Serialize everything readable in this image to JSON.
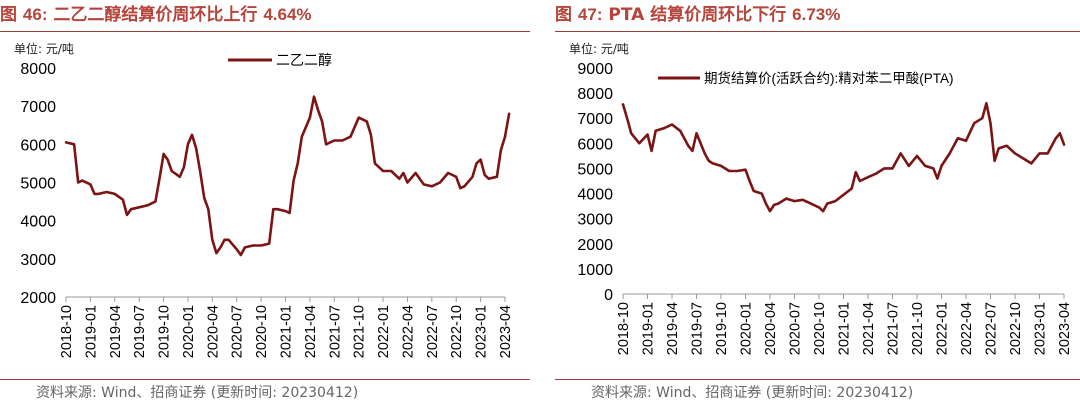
{
  "charts": [
    {
      "title_prefix": "图",
      "title_num": "46:",
      "title_text": "二乙二醇结算价周环比上行",
      "title_value": "4.64%",
      "unit": "单位: 元/吨",
      "legend": "二乙二醇",
      "source": "资料来源: Wind、招商证券 (更新时间: 20230412)"
    },
    {
      "title_prefix": "图",
      "title_num": "47:",
      "title_text": "PTA 结算价周环比下行",
      "title_value": "6.73%",
      "unit": "单位: 元/吨",
      "legend": "期货结算价(活跃合约):精对苯二甲酸(PTA)",
      "source": "资料来源: Wind、招商证券 (更新时间: 20230412)"
    }
  ],
  "colors": {
    "accent": "#b5443b",
    "line": "#7b1414",
    "rule": "#9a3b34"
  },
  "chart_data": [
    {
      "type": "line",
      "xlabel": "",
      "ylabel": "",
      "x_ticks": [
        "2018-10",
        "2019-01",
        "2019-04",
        "2019-07",
        "2019-10",
        "2020-01",
        "2020-04",
        "2020-07",
        "2020-10",
        "2021-01",
        "2021-04",
        "2021-07",
        "2021-10",
        "2022-01",
        "2022-04",
        "2022-07",
        "2022-10",
        "2023-01",
        "2023-04"
      ],
      "xlim": [
        "2018-10",
        "2023-04"
      ],
      "ylim": [
        2000,
        8000
      ],
      "y_ticks": [
        2000,
        3000,
        4000,
        5000,
        6000,
        7000,
        8000
      ],
      "grid": false,
      "legend_position": "top-center",
      "series": [
        {
          "name": "二乙二醇",
          "points": [
            [
              "2018-10",
              6050
            ],
            [
              "2018-11",
              6000
            ],
            [
              "2018-11",
              5000
            ],
            [
              "2018-12",
              5050
            ],
            [
              "2019-01",
              4950
            ],
            [
              "2019-01",
              4700
            ],
            [
              "2019-02",
              4700
            ],
            [
              "2019-03",
              4750
            ],
            [
              "2019-04",
              4700
            ],
            [
              "2019-05",
              4550
            ],
            [
              "2019-05",
              4150
            ],
            [
              "2019-06",
              4300
            ],
            [
              "2019-07",
              4350
            ],
            [
              "2019-08",
              4400
            ],
            [
              "2019-09",
              4500
            ],
            [
              "2019-09",
              5100
            ],
            [
              "2019-10",
              5750
            ],
            [
              "2019-10",
              5600
            ],
            [
              "2019-11",
              5300
            ],
            [
              "2019-12",
              5150
            ],
            [
              "2019-12",
              5400
            ],
            [
              "2020-01",
              6000
            ],
            [
              "2020-01",
              6250
            ],
            [
              "2020-02",
              5900
            ],
            [
              "2020-02",
              5300
            ],
            [
              "2020-03",
              4600
            ],
            [
              "2020-03",
              4300
            ],
            [
              "2020-04",
              3500
            ],
            [
              "2020-04",
              3150
            ],
            [
              "2020-05",
              3300
            ],
            [
              "2020-05",
              3500
            ],
            [
              "2020-06",
              3500
            ],
            [
              "2020-07",
              3250
            ],
            [
              "2020-07",
              3100
            ],
            [
              "2020-08",
              3300
            ],
            [
              "2020-09",
              3350
            ],
            [
              "2020-10",
              3350
            ],
            [
              "2020-11",
              3400
            ],
            [
              "2020-11",
              4300
            ],
            [
              "2020-12",
              4300
            ],
            [
              "2021-01",
              4250
            ],
            [
              "2021-01",
              4200
            ],
            [
              "2021-02",
              5050
            ],
            [
              "2021-02",
              5500
            ],
            [
              "2021-03",
              6200
            ],
            [
              "2021-04",
              6700
            ],
            [
              "2021-04",
              7250
            ],
            [
              "2021-05",
              6900
            ],
            [
              "2021-05",
              6600
            ],
            [
              "2021-06",
              6000
            ],
            [
              "2021-07",
              6100
            ],
            [
              "2021-08",
              6100
            ],
            [
              "2021-09",
              6200
            ],
            [
              "2021-09",
              6450
            ],
            [
              "2021-10",
              6700
            ],
            [
              "2021-11",
              6600
            ],
            [
              "2021-11",
              6250
            ],
            [
              "2021-12",
              5500
            ],
            [
              "2022-01",
              5300
            ],
            [
              "2022-02",
              5300
            ],
            [
              "2022-03",
              5100
            ],
            [
              "2022-03",
              5250
            ],
            [
              "2022-04",
              5000
            ],
            [
              "2022-05",
              5250
            ],
            [
              "2022-06",
              4950
            ],
            [
              "2022-07",
              4900
            ],
            [
              "2022-08",
              5000
            ],
            [
              "2022-09",
              5250
            ],
            [
              "2022-10",
              5150
            ],
            [
              "2022-10",
              4850
            ],
            [
              "2022-11",
              4900
            ],
            [
              "2022-12",
              5150
            ],
            [
              "2022-12",
              5500
            ],
            [
              "2023-01",
              5600
            ],
            [
              "2023-01",
              5200
            ],
            [
              "2023-02",
              5100
            ],
            [
              "2023-03",
              5150
            ],
            [
              "2023-03",
              5850
            ],
            [
              "2023-04",
              6200
            ],
            [
              "2023-04",
              6800
            ]
          ]
        }
      ]
    },
    {
      "type": "line",
      "xlabel": "",
      "ylabel": "",
      "x_ticks": [
        "2018-10",
        "2019-01",
        "2019-04",
        "2019-07",
        "2019-10",
        "2020-01",
        "2020-04",
        "2020-07",
        "2020-10",
        "2021-01",
        "2021-04",
        "2021-07",
        "2021-10",
        "2022-01",
        "2022-04",
        "2022-07",
        "2022-10",
        "2023-01",
        "2023-04"
      ],
      "xlim": [
        "2018-10",
        "2023-04"
      ],
      "ylim": [
        0,
        9000
      ],
      "y_ticks": [
        0,
        1000,
        2000,
        3000,
        4000,
        5000,
        6000,
        7000,
        8000,
        9000
      ],
      "grid": false,
      "legend_position": "top-center",
      "series": [
        {
          "name": "期货结算价(活跃合约):精对苯二甲酸(PTA)",
          "points": [
            [
              "2018-10",
              7550
            ],
            [
              "2018-10",
              7000
            ],
            [
              "2018-11",
              6400
            ],
            [
              "2018-12",
              6000
            ],
            [
              "2019-01",
              6350
            ],
            [
              "2019-01",
              5700
            ],
            [
              "2019-02",
              6500
            ],
            [
              "2019-03",
              6600
            ],
            [
              "2019-04",
              6750
            ],
            [
              "2019-05",
              6500
            ],
            [
              "2019-06",
              5900
            ],
            [
              "2019-06",
              5700
            ],
            [
              "2019-07",
              6400
            ],
            [
              "2019-08",
              5600
            ],
            [
              "2019-08",
              5300
            ],
            [
              "2019-09",
              5200
            ],
            [
              "2019-10",
              5100
            ],
            [
              "2019-11",
              4900
            ],
            [
              "2019-12",
              4900
            ],
            [
              "2020-01",
              4950
            ],
            [
              "2020-01",
              4500
            ],
            [
              "2020-02",
              4100
            ],
            [
              "2020-03",
              4000
            ],
            [
              "2020-03",
              3600
            ],
            [
              "2020-04",
              3300
            ],
            [
              "2020-04",
              3550
            ],
            [
              "2020-05",
              3600
            ],
            [
              "2020-06",
              3800
            ],
            [
              "2020-07",
              3700
            ],
            [
              "2020-08",
              3750
            ],
            [
              "2020-09",
              3600
            ],
            [
              "2020-10",
              3450
            ],
            [
              "2020-10",
              3300
            ],
            [
              "2020-11",
              3600
            ],
            [
              "2020-12",
              3700
            ],
            [
              "2021-01",
              3950
            ],
            [
              "2021-02",
              4200
            ],
            [
              "2021-02",
              4850
            ],
            [
              "2021-03",
              4500
            ],
            [
              "2021-04",
              4650
            ],
            [
              "2021-05",
              4800
            ],
            [
              "2021-06",
              5000
            ],
            [
              "2021-07",
              5000
            ],
            [
              "2021-08",
              5600
            ],
            [
              "2021-09",
              5100
            ],
            [
              "2021-10",
              5500
            ],
            [
              "2021-11",
              5100
            ],
            [
              "2021-12",
              5000
            ],
            [
              "2021-12",
              4600
            ],
            [
              "2022-01",
              5100
            ],
            [
              "2022-02",
              5600
            ],
            [
              "2022-03",
              6200
            ],
            [
              "2022-04",
              6100
            ],
            [
              "2022-05",
              6800
            ],
            [
              "2022-06",
              7000
            ],
            [
              "2022-06",
              7600
            ],
            [
              "2022-07",
              6800
            ],
            [
              "2022-07",
              5300
            ],
            [
              "2022-08",
              5800
            ],
            [
              "2022-09",
              5900
            ],
            [
              "2022-10",
              5600
            ],
            [
              "2022-11",
              5400
            ],
            [
              "2022-12",
              5200
            ],
            [
              "2023-01",
              5600
            ],
            [
              "2023-02",
              5600
            ],
            [
              "2023-03",
              6200
            ],
            [
              "2023-03",
              6400
            ],
            [
              "2023-04",
              5950
            ]
          ]
        }
      ]
    }
  ]
}
